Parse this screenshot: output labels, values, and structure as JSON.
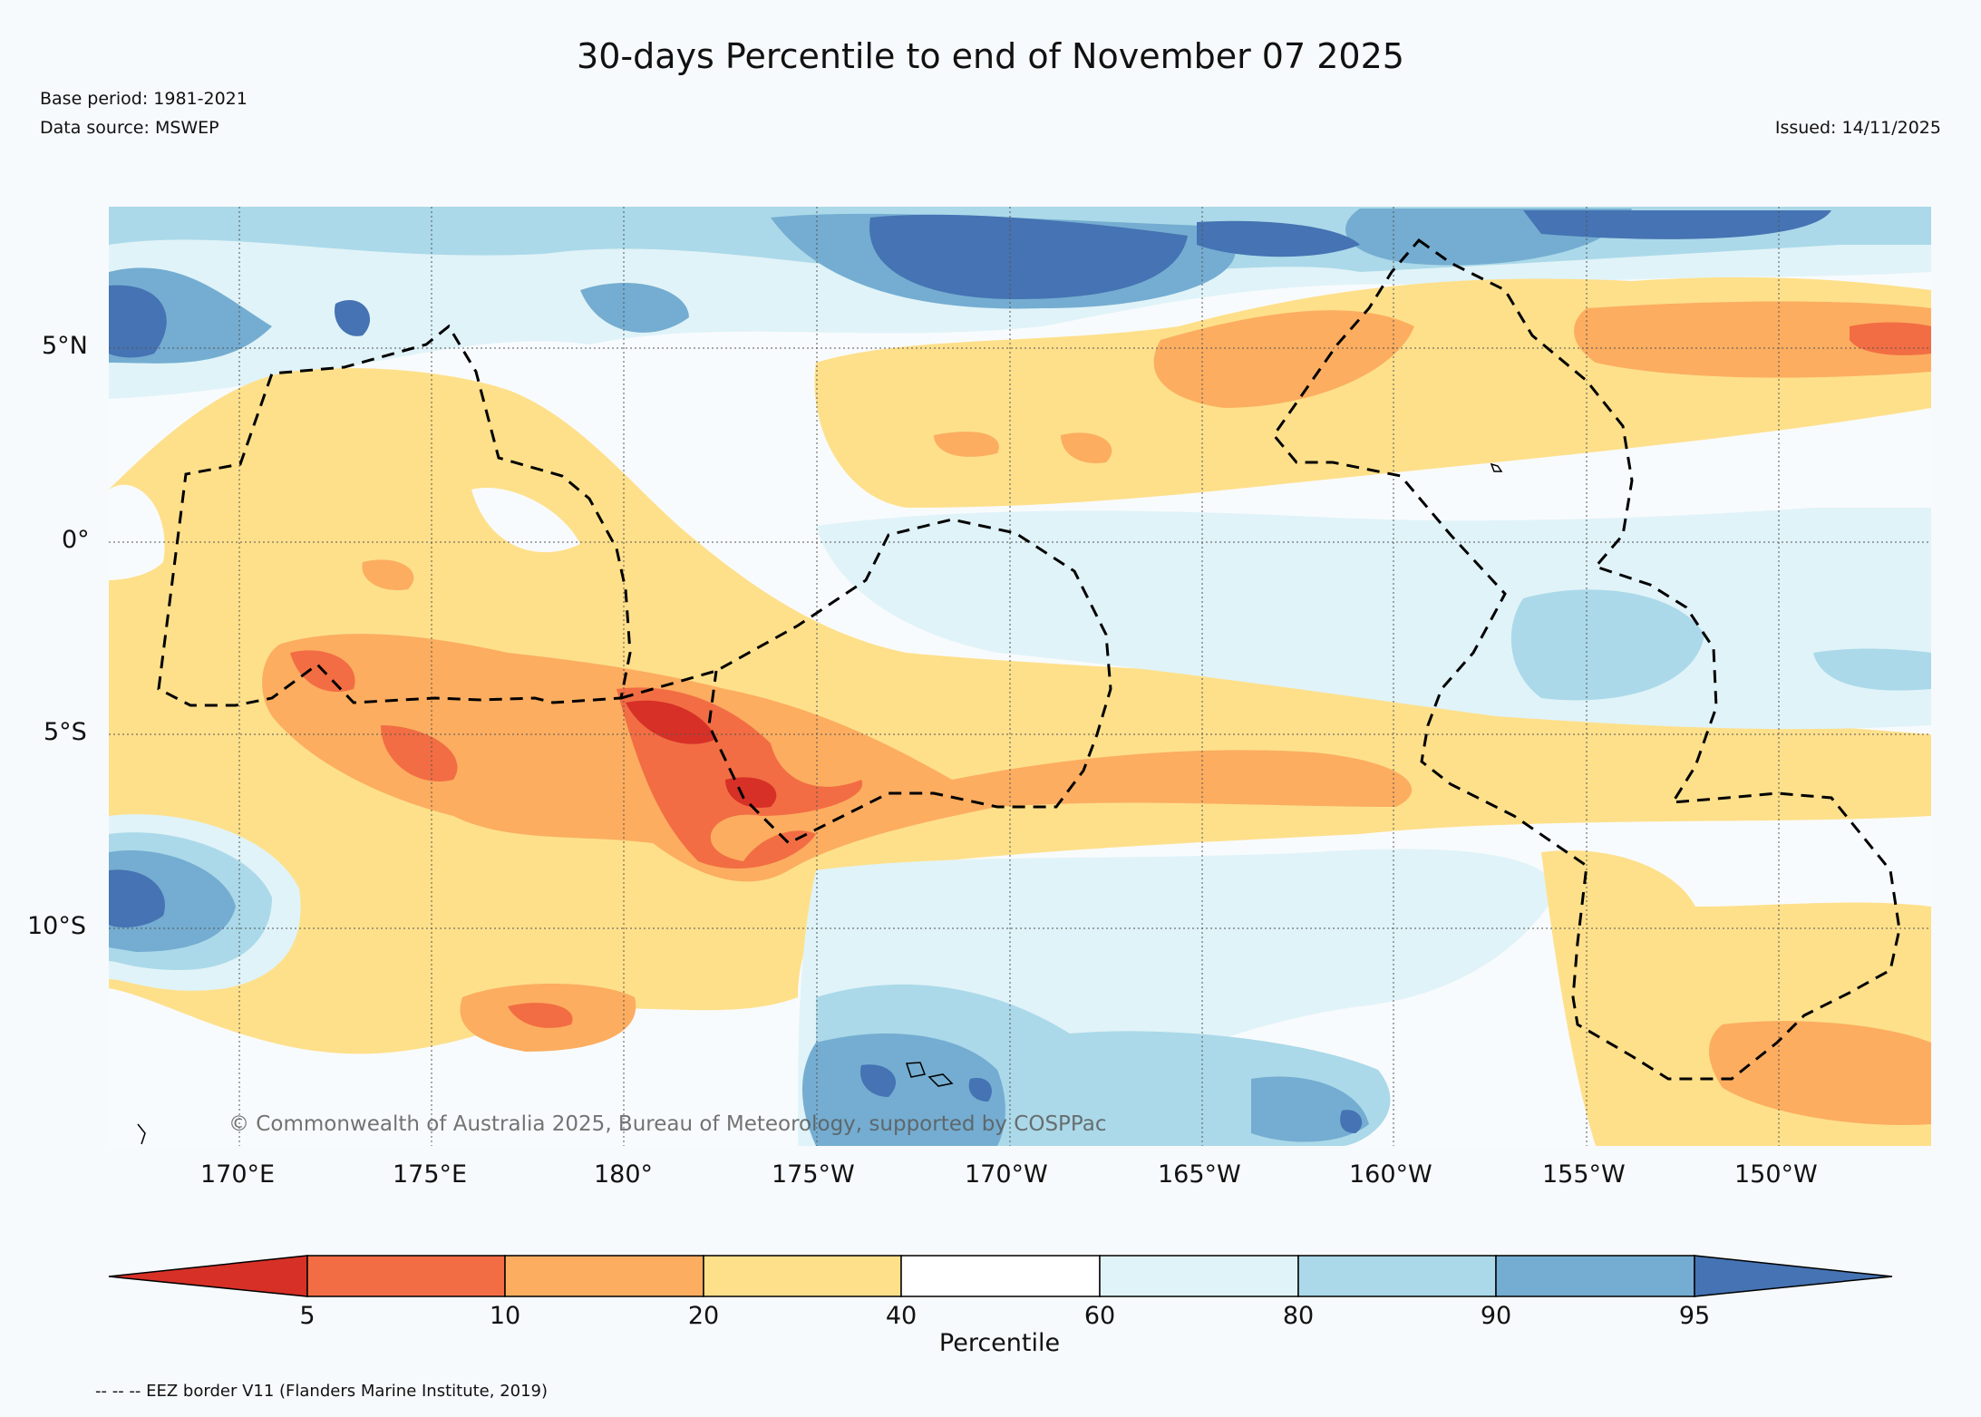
{
  "title": "30-days Percentile to end of November 07 2025",
  "base_period": "Base period: 1981-2021",
  "data_source": "Data source: MSWEP",
  "issued": "Issued: 14/11/2025",
  "copyright": "© Commonwealth of Australia 2025, Bureau of Meteorology, supported by COSPPac",
  "footer_note": "-- -- -- EEZ border V11 (Flanders Marine Institute, 2019)",
  "map": {
    "lon_labels": [
      "170°E",
      "175°E",
      "180°",
      "175°W",
      "170°W",
      "165°W",
      "160°W",
      "155°W",
      "150°W"
    ],
    "lat_labels": [
      "5°N",
      "0°",
      "5°S",
      "10°S"
    ]
  },
  "colorbar": {
    "label": "Percentile",
    "ticks": [
      "5",
      "10",
      "20",
      "40",
      "60",
      "80",
      "90",
      "95"
    ],
    "colors": {
      "lt5": "#d73027",
      "p5_10": "#f26d43",
      "p10_20": "#fcad60",
      "p20_40": "#fee08b",
      "p40_60": "#ffffff",
      "p60_80": "#e0f3f8",
      "p80_90": "#abd9e9",
      "p90_95": "#74add1",
      "gt95": "#4573b3"
    }
  }
}
